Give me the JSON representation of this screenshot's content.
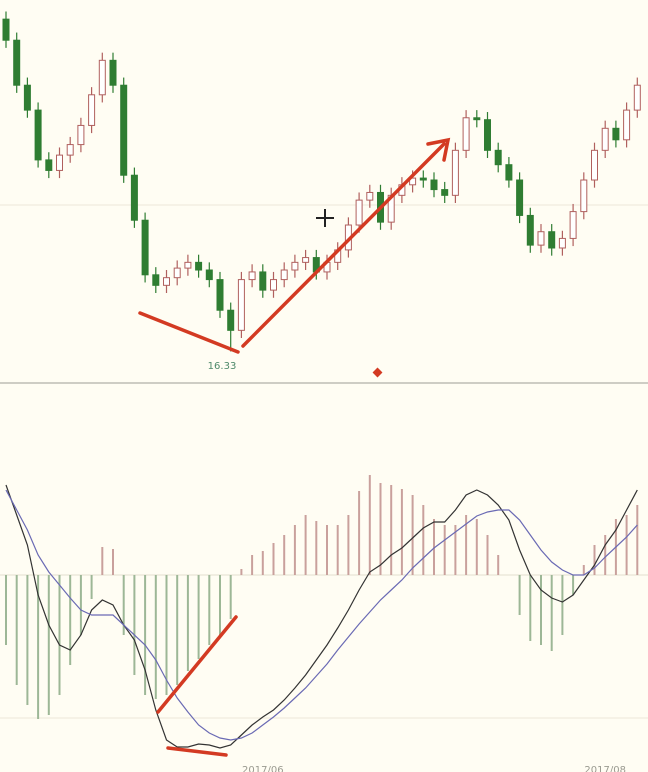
{
  "chart_data": [
    {
      "type": "candlestick",
      "ylim": [
        16,
        20
      ],
      "up_color": "#b0605e",
      "down_color": "#2f7d32",
      "open": [
        19.8,
        19.58,
        19.11,
        18.85,
        18.33,
        18.22,
        18.38,
        18.49,
        18.69,
        19.01,
        19.37,
        19.11,
        18.17,
        17.7,
        17.13,
        17.02,
        17.1,
        17.2,
        17.26,
        17.18,
        17.08,
        16.76,
        16.55,
        17.08,
        17.16,
        16.97,
        17.08,
        17.18,
        17.26,
        17.31,
        17.16,
        17.26,
        17.39,
        17.65,
        17.91,
        17.99,
        17.68,
        17.96,
        18.07,
        18.14,
        18.12,
        18.02,
        17.96,
        18.43,
        18.77,
        18.75,
        18.43,
        18.28,
        18.12,
        17.75,
        17.44,
        17.58,
        17.41,
        17.51,
        17.79,
        18.12,
        18.43,
        18.66,
        18.54,
        18.85
      ],
      "high": [
        19.88,
        19.66,
        19.19,
        18.93,
        18.41,
        18.46,
        18.57,
        18.77,
        19.09,
        19.45,
        19.45,
        19.19,
        18.25,
        17.78,
        17.21,
        17.18,
        17.28,
        17.34,
        17.34,
        17.26,
        17.16,
        16.84,
        17.16,
        17.24,
        17.24,
        17.16,
        17.26,
        17.34,
        17.39,
        17.39,
        17.34,
        17.47,
        17.73,
        17.99,
        18.07,
        18.07,
        18.04,
        18.15,
        18.22,
        18.22,
        18.2,
        18.1,
        18.51,
        18.85,
        18.85,
        18.83,
        18.51,
        18.36,
        18.2,
        17.83,
        17.66,
        17.66,
        17.59,
        17.87,
        18.2,
        18.51,
        18.74,
        18.74,
        18.93,
        19.19
      ],
      "low": [
        19.5,
        19.03,
        18.77,
        18.25,
        18.14,
        18.14,
        18.3,
        18.41,
        18.61,
        18.93,
        19.03,
        18.09,
        17.62,
        17.05,
        16.94,
        16.94,
        17.02,
        17.12,
        17.1,
        17.0,
        16.68,
        16.33,
        16.47,
        17.0,
        16.89,
        16.89,
        17.0,
        17.1,
        17.18,
        17.08,
        17.08,
        17.18,
        17.31,
        17.57,
        17.83,
        17.6,
        17.6,
        17.88,
        17.99,
        18.04,
        17.94,
        17.88,
        17.88,
        18.35,
        18.67,
        18.35,
        18.2,
        18.04,
        17.67,
        17.36,
        17.36,
        17.33,
        17.33,
        17.43,
        17.71,
        18.04,
        18.35,
        18.46,
        18.46,
        18.77
      ],
      "close": [
        19.58,
        19.11,
        18.85,
        18.33,
        18.22,
        18.38,
        18.49,
        18.69,
        19.01,
        19.37,
        19.11,
        18.17,
        17.7,
        17.13,
        17.02,
        17.1,
        17.2,
        17.26,
        17.18,
        17.08,
        16.76,
        16.55,
        17.08,
        17.16,
        16.97,
        17.08,
        17.18,
        17.26,
        17.31,
        17.16,
        17.26,
        17.39,
        17.65,
        17.91,
        17.99,
        17.68,
        17.96,
        18.07,
        18.14,
        18.12,
        18.02,
        17.96,
        18.43,
        18.77,
        18.75,
        18.43,
        18.28,
        18.12,
        17.75,
        17.44,
        17.58,
        17.41,
        17.51,
        17.79,
        18.12,
        18.43,
        18.66,
        18.54,
        18.85,
        19.11
      ]
    },
    {
      "type": "macd",
      "ylim": [
        -0.925,
        0.925
      ],
      "categories": [
        null,
        null,
        null,
        null,
        null,
        null,
        null,
        null,
        null,
        null,
        null,
        null,
        null,
        null,
        null,
        null,
        null,
        null,
        null,
        null,
        null,
        null,
        null,
        null,
        "2017/06",
        null,
        null,
        null,
        null,
        null,
        null,
        null,
        null,
        null,
        null,
        null,
        null,
        null,
        null,
        null,
        null,
        null,
        null,
        null,
        null,
        null,
        null,
        null,
        null,
        null,
        null,
        null,
        null,
        null,
        null,
        null,
        "2017/08",
        null,
        null,
        null
      ],
      "series": [
        {
          "kind": "histogram",
          "color": "#c9a09c",
          "negative_color": "#9db796",
          "values": [
            -0.35,
            -0.55,
            -0.65,
            -0.72,
            -0.7,
            -0.6,
            -0.45,
            -0.3,
            -0.12,
            0.14,
            0.13,
            -0.3,
            -0.5,
            -0.6,
            -0.62,
            -0.6,
            -0.55,
            -0.48,
            -0.42,
            -0.35,
            -0.3,
            -0.22,
            0.03,
            0.1,
            0.12,
            0.16,
            0.2,
            0.25,
            0.3,
            0.27,
            0.25,
            0.25,
            0.3,
            0.42,
            0.5,
            0.46,
            0.45,
            0.43,
            0.4,
            0.35,
            0.28,
            0.25,
            0.25,
            0.3,
            0.28,
            0.2,
            0.1,
            0.0,
            -0.2,
            -0.33,
            -0.35,
            -0.38,
            -0.3,
            -0.1,
            0.05,
            0.15,
            0.2,
            0.28,
            0.3,
            0.35
          ]
        },
        {
          "kind": "line",
          "color": "#333333",
          "values": [
            0.45,
            0.3,
            0.15,
            -0.1,
            -0.25,
            -0.35,
            -0.375,
            -0.3,
            -0.175,
            -0.125,
            -0.15,
            -0.25,
            -0.325,
            -0.475,
            -0.675,
            -0.825,
            -0.86,
            -0.86,
            -0.845,
            -0.85,
            -0.865,
            -0.85,
            -0.8,
            -0.75,
            -0.71,
            -0.675,
            -0.625,
            -0.565,
            -0.5,
            -0.425,
            -0.35,
            -0.265,
            -0.175,
            -0.075,
            0.015,
            0.05,
            0.1,
            0.135,
            0.185,
            0.235,
            0.265,
            0.265,
            0.325,
            0.4,
            0.425,
            0.4,
            0.35,
            0.275,
            0.125,
            0.0,
            -0.075,
            -0.115,
            -0.135,
            -0.1,
            -0.025,
            0.05,
            0.15,
            0.225,
            0.325,
            0.425
          ]
        },
        {
          "kind": "line",
          "color": "#6a6ab4",
          "values": [
            0.425,
            0.325,
            0.225,
            0.1,
            0.015,
            -0.05,
            -0.115,
            -0.175,
            -0.2,
            -0.2,
            -0.2,
            -0.25,
            -0.3,
            -0.35,
            -0.425,
            -0.525,
            -0.615,
            -0.685,
            -0.75,
            -0.79,
            -0.815,
            -0.825,
            -0.815,
            -0.79,
            -0.75,
            -0.71,
            -0.665,
            -0.615,
            -0.565,
            -0.505,
            -0.445,
            -0.375,
            -0.31,
            -0.245,
            -0.185,
            -0.125,
            -0.075,
            -0.025,
            0.035,
            0.085,
            0.135,
            0.175,
            0.215,
            0.255,
            0.295,
            0.315,
            0.325,
            0.325,
            0.275,
            0.2,
            0.125,
            0.065,
            0.025,
            0.0,
            0.0,
            0.035,
            0.09,
            0.14,
            0.19,
            0.25
          ]
        }
      ]
    }
  ]
}
